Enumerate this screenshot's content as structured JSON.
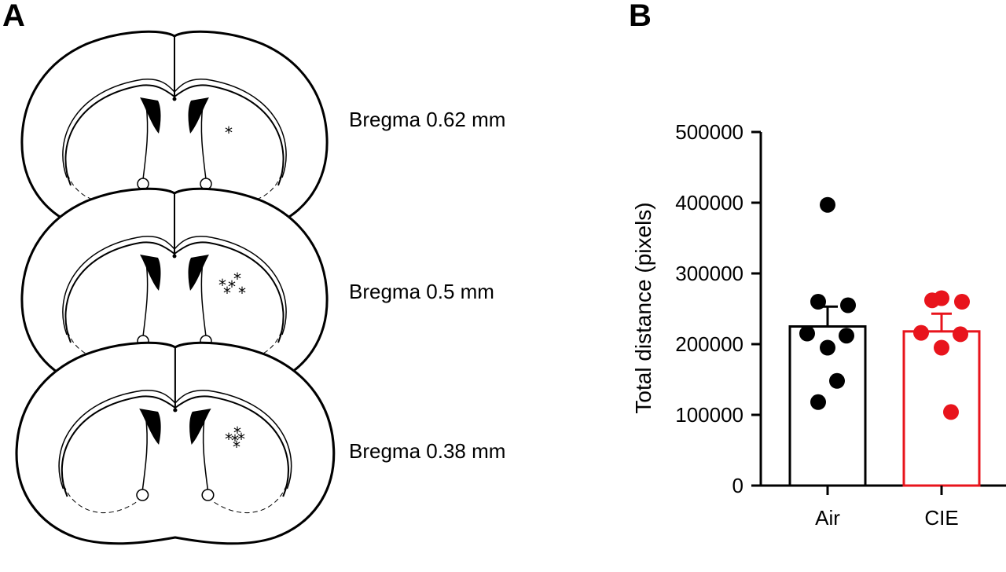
{
  "panel_a": {
    "letter": "A",
    "sections": [
      {
        "label": "Bregma 0.62 mm",
        "site_count": 1
      },
      {
        "label": "Bregma 0.5 mm",
        "site_count": 5
      },
      {
        "label": "Bregma 0.38 mm",
        "site_count": 5
      }
    ],
    "site_marker": "*"
  },
  "panel_b": {
    "letter": "B"
  },
  "chart_data": {
    "type": "bar",
    "categories": [
      "Air",
      "CIE"
    ],
    "ylabel": "Total distance (pixels)",
    "xlabel": "",
    "ylim": [
      0,
      500000
    ],
    "yticks": [
      0,
      100000,
      200000,
      300000,
      400000,
      500000
    ],
    "series": [
      {
        "name": "Air",
        "mean": 225000,
        "sem": 28000,
        "color": "#000000",
        "points": [
          397000,
          260000,
          255000,
          215000,
          212000,
          195000,
          148000,
          118000
        ]
      },
      {
        "name": "CIE",
        "mean": 218000,
        "sem": 25000,
        "color": "#e8141c",
        "points": [
          265000,
          262000,
          260000,
          216000,
          214000,
          195000,
          104000
        ]
      }
    ]
  }
}
